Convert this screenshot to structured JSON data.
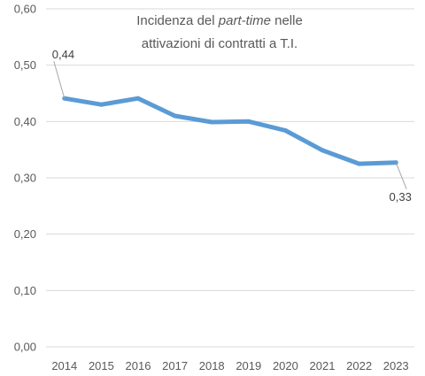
{
  "chart_data": {
    "type": "line",
    "title_parts": [
      "Incidenza del ",
      "part-time",
      " nelle",
      "attivazioni di contratti a T.I."
    ],
    "categories": [
      "2014",
      "2015",
      "2016",
      "2017",
      "2018",
      "2019",
      "2020",
      "2021",
      "2022",
      "2023"
    ],
    "series": [
      {
        "values": [
          0.441,
          0.43,
          0.441,
          0.41,
          0.399,
          0.4,
          0.384,
          0.349,
          0.325,
          0.327
        ]
      }
    ],
    "y_ticks": [
      "0,00",
      "0,10",
      "0,20",
      "0,30",
      "0,40",
      "0,50",
      "0,60"
    ],
    "ylim": [
      0,
      0.6
    ],
    "grid": true,
    "data_labels": [
      {
        "index": 0,
        "text": "0,44"
      },
      {
        "index": 9,
        "text": "0,33"
      }
    ],
    "colors": {
      "line": "#5b9bd5",
      "grid": "#d9d9d9",
      "text": "#595959",
      "leader": "#a6a6a6"
    }
  }
}
